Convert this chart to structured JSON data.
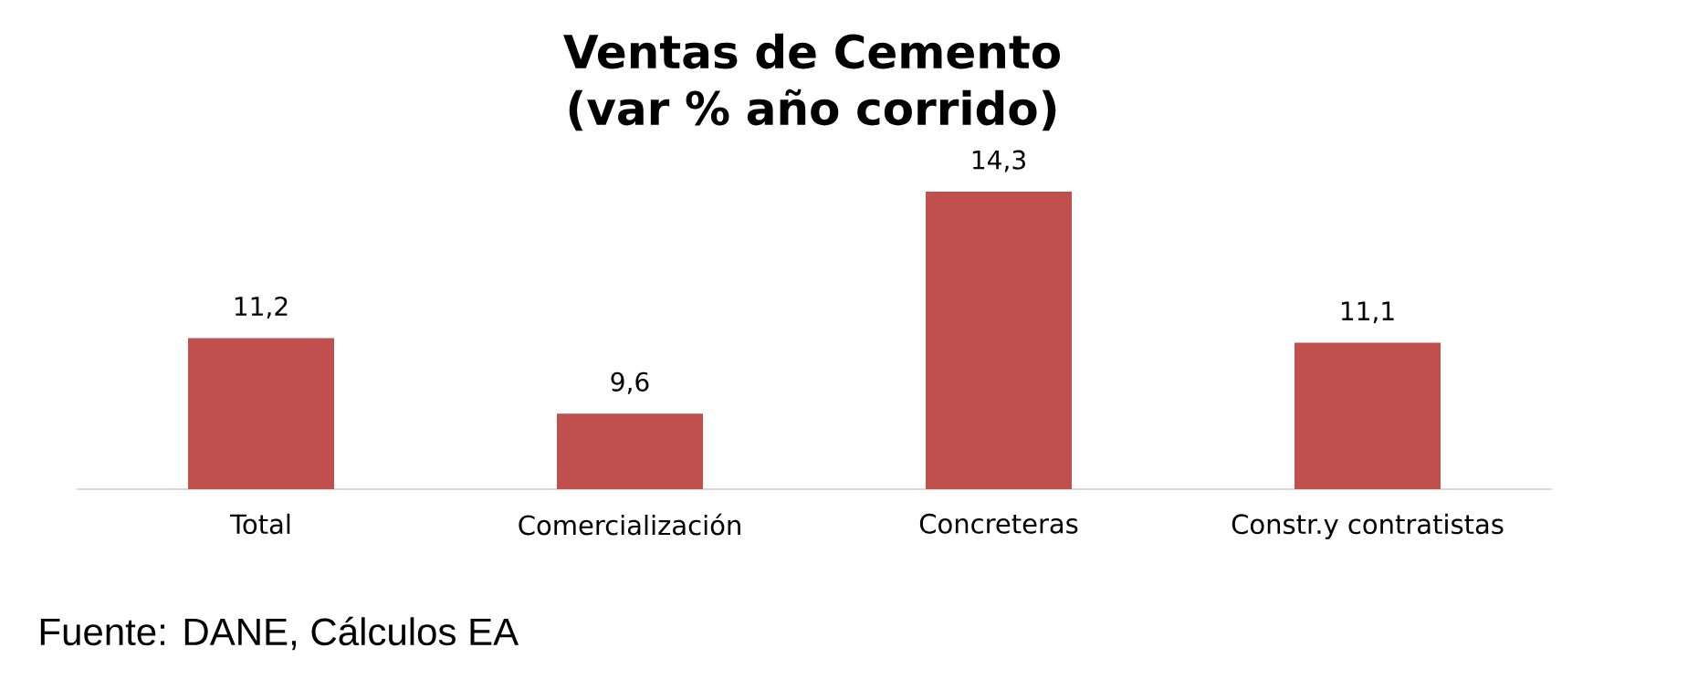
{
  "chart_data": {
    "type": "bar",
    "title": "Ventas de Cemento (var % año corrido)",
    "categories": [
      "Total",
      "Comercialización",
      "Concreteras",
      "Constr.y contratistas"
    ],
    "values": [
      11.2,
      9.6,
      14.3,
      11.1
    ],
    "value_labels": [
      "11,2",
      "9,6",
      "14,3",
      "11,1"
    ],
    "color": "#c0504d",
    "ylim": [
      8,
      14.3
    ],
    "annotations": [
      "Fuente: DANE, Cálculos EA"
    ]
  }
}
